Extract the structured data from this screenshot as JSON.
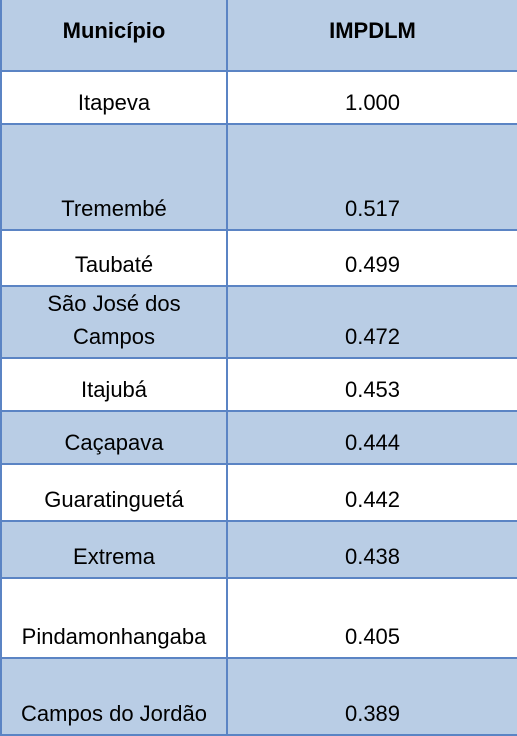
{
  "table": {
    "headers": [
      "Município",
      "IMPDLM"
    ],
    "rows": [
      {
        "municipio": "Itapeva",
        "impdlm": "1.000"
      },
      {
        "municipio": "Tremembé",
        "impdlm": "0.517"
      },
      {
        "municipio": "Taubaté",
        "impdlm": "0.499"
      },
      {
        "municipio": "São José dos Campos",
        "impdlm": "0.472"
      },
      {
        "municipio": "Itajubá",
        "impdlm": "0.453"
      },
      {
        "municipio": "Caçapava",
        "impdlm": "0.444"
      },
      {
        "municipio": "Guaratinguetá",
        "impdlm": "0.442"
      },
      {
        "municipio": "Extrema",
        "impdlm": "0.438"
      },
      {
        "municipio": "Pindamonhangaba",
        "impdlm": "0.405"
      },
      {
        "municipio": "Campos do Jordão",
        "impdlm": "0.389"
      }
    ]
  },
  "colors": {
    "header_bg": "#b9cde5",
    "stripe_bg": "#b9cde5",
    "row_bg": "#ffffff",
    "border": "#5b84c4"
  }
}
